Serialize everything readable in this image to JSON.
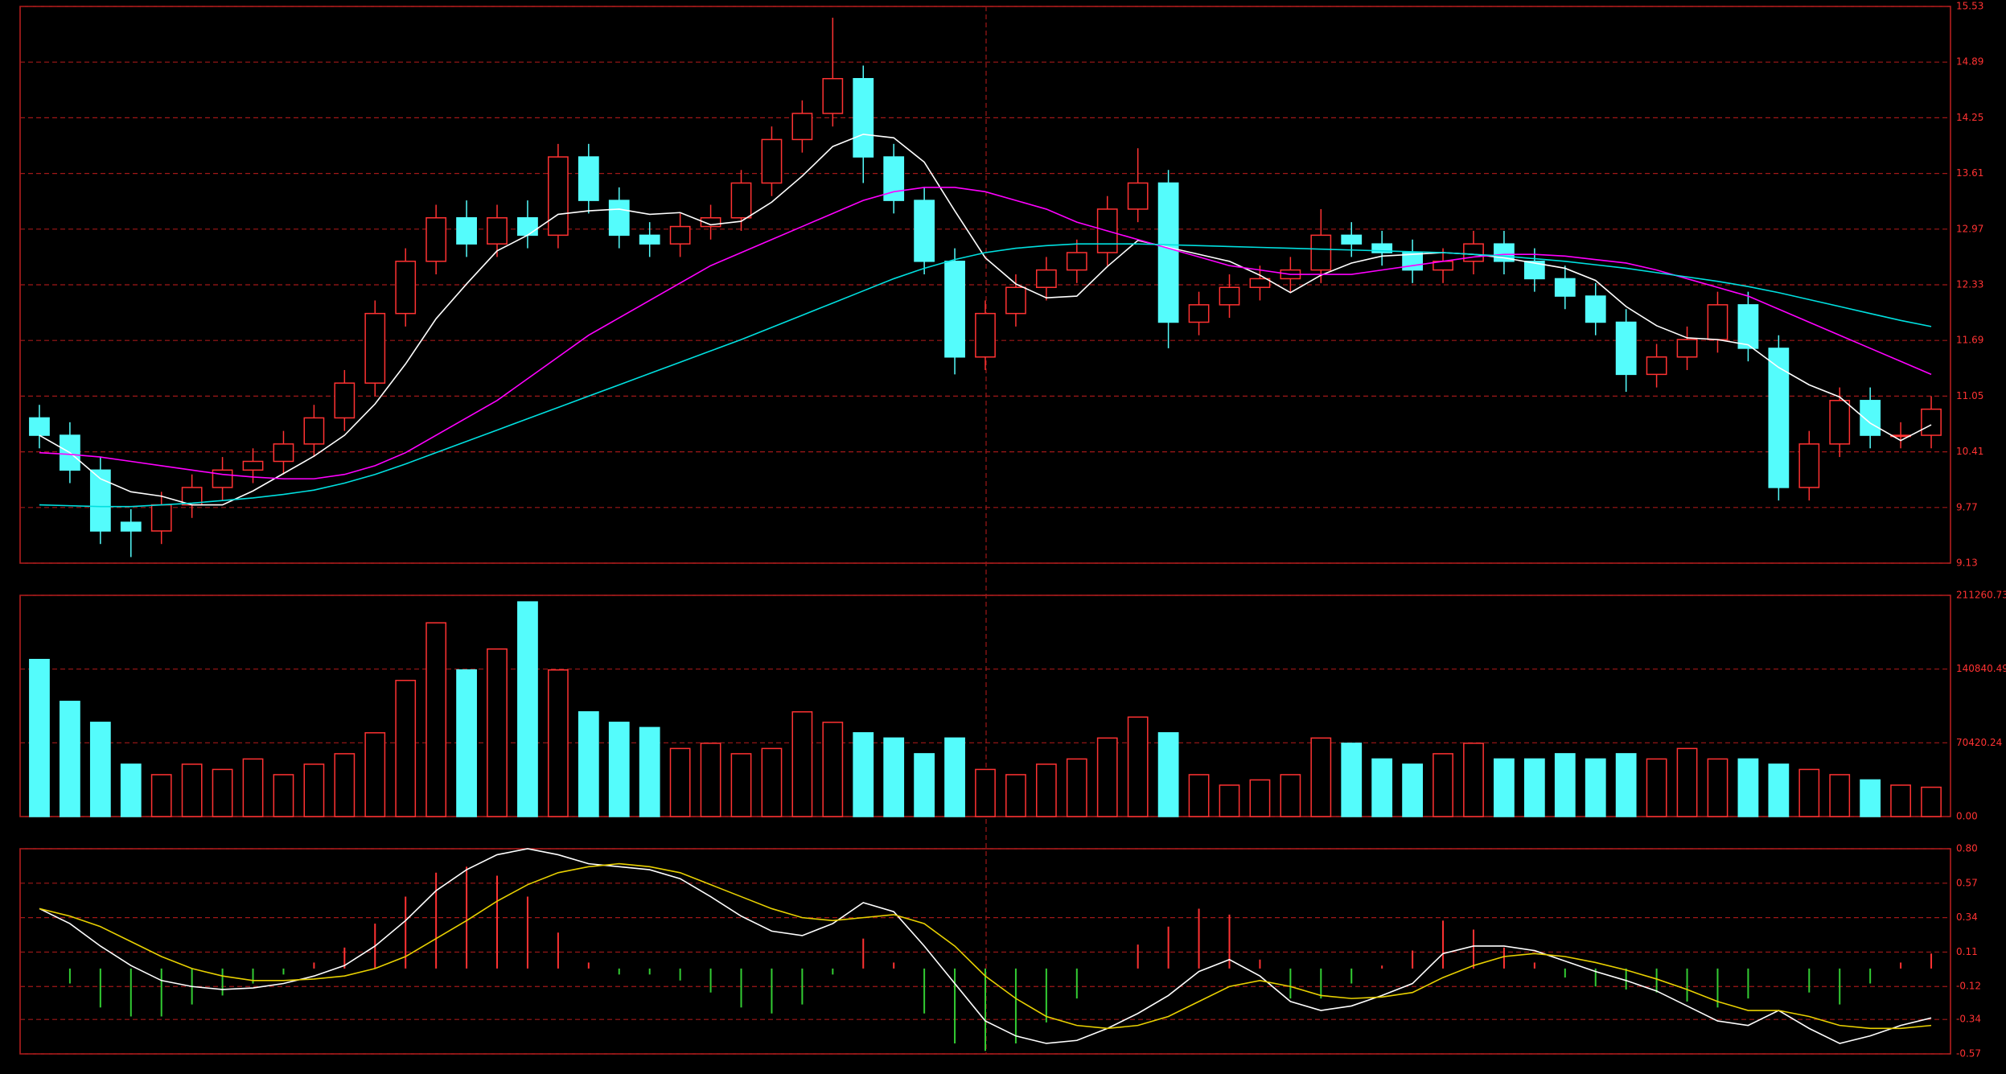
{
  "chart_data": [
    {
      "type": "candlestick",
      "up_color": "#ff3232",
      "down_color": "#54fcfc",
      "open": [
        10.8,
        10.6,
        10.2,
        9.6,
        9.5,
        9.8,
        10.0,
        10.2,
        10.3,
        10.5,
        10.8,
        11.2,
        12.0,
        12.6,
        13.1,
        12.8,
        13.1,
        12.9,
        13.8,
        13.3,
        12.9,
        12.8,
        13.0,
        13.1,
        13.5,
        14.0,
        14.3,
        14.7,
        13.8,
        13.3,
        12.6,
        11.5,
        12.0,
        12.3,
        12.5,
        12.7,
        13.2,
        13.5,
        11.9,
        12.1,
        12.3,
        12.4,
        12.5,
        12.9,
        12.8,
        12.7,
        12.5,
        12.6,
        12.8,
        12.6,
        12.4,
        12.2,
        11.9,
        11.3,
        11.5,
        11.7,
        12.1,
        11.6,
        10.0,
        10.5,
        11.0,
        10.6,
        10.6
      ],
      "high": [
        10.95,
        10.75,
        10.35,
        9.75,
        9.95,
        10.15,
        10.35,
        10.45,
        10.65,
        10.95,
        11.35,
        12.15,
        12.75,
        13.25,
        13.3,
        13.25,
        13.3,
        13.95,
        13.95,
        13.45,
        13.05,
        13.15,
        13.25,
        13.65,
        14.15,
        14.45,
        15.4,
        14.85,
        13.95,
        13.45,
        12.75,
        12.15,
        12.45,
        12.65,
        12.85,
        13.35,
        13.9,
        13.65,
        12.25,
        12.45,
        12.55,
        12.65,
        13.2,
        13.05,
        12.95,
        12.85,
        12.75,
        12.95,
        12.95,
        12.75,
        12.55,
        12.35,
        12.05,
        11.65,
        11.85,
        12.25,
        12.25,
        11.75,
        10.65,
        11.15,
        11.15,
        10.75,
        11.05
      ],
      "low": [
        10.45,
        10.05,
        9.35,
        9.2,
        9.35,
        9.65,
        9.85,
        10.05,
        10.15,
        10.35,
        10.65,
        11.05,
        11.85,
        12.45,
        12.65,
        12.65,
        12.75,
        12.75,
        13.15,
        12.75,
        12.65,
        12.65,
        12.85,
        12.95,
        13.35,
        13.85,
        14.15,
        13.5,
        13.15,
        12.45,
        11.3,
        11.35,
        11.85,
        12.15,
        12.35,
        12.55,
        13.05,
        11.6,
        11.75,
        11.95,
        12.15,
        12.25,
        12.35,
        12.65,
        12.55,
        12.35,
        12.35,
        12.45,
        12.45,
        12.25,
        12.05,
        11.75,
        11.1,
        11.15,
        11.35,
        11.55,
        11.45,
        9.85,
        9.85,
        10.35,
        10.45,
        10.45,
        10.45
      ],
      "close": [
        10.6,
        10.2,
        9.5,
        9.5,
        9.8,
        10.0,
        10.2,
        10.3,
        10.5,
        10.8,
        11.2,
        12.0,
        12.6,
        13.1,
        12.8,
        13.1,
        12.9,
        13.8,
        13.3,
        12.9,
        12.8,
        13.0,
        13.1,
        13.5,
        14.0,
        14.3,
        14.7,
        13.8,
        13.3,
        12.6,
        11.5,
        12.0,
        12.3,
        12.5,
        12.7,
        13.2,
        13.5,
        11.9,
        12.1,
        12.3,
        12.4,
        12.5,
        12.9,
        12.8,
        12.7,
        12.5,
        12.6,
        12.8,
        12.6,
        12.4,
        12.2,
        11.9,
        11.3,
        11.5,
        11.7,
        12.1,
        11.6,
        10.0,
        10.5,
        11.0,
        10.6,
        10.6,
        10.9
      ],
      "lines": [
        {
          "color": "#ffffff",
          "values": [
            10.6,
            10.4,
            10.1,
            9.95,
            9.9,
            9.8,
            9.8,
            9.96,
            10.16,
            10.36,
            10.6,
            10.96,
            11.42,
            11.94,
            12.34,
            12.72,
            12.9,
            13.14,
            13.18,
            13.2,
            13.14,
            13.16,
            13.02,
            13.06,
            13.28,
            13.58,
            13.92,
            14.06,
            14.02,
            13.74,
            13.18,
            12.64,
            12.34,
            12.18,
            12.2,
            12.54,
            12.84,
            12.76,
            12.68,
            12.6,
            12.44,
            12.24,
            12.44,
            12.58,
            12.66,
            12.68,
            12.7,
            12.68,
            12.64,
            12.58,
            12.52,
            12.38,
            12.08,
            11.86,
            11.72,
            11.7,
            11.64,
            11.38,
            11.18,
            11.04,
            10.74,
            10.54,
            10.72
          ]
        },
        {
          "color": "#ff00ff",
          "values": [
            10.4,
            10.38,
            10.35,
            10.3,
            10.25,
            10.2,
            10.15,
            10.12,
            10.1,
            10.1,
            10.15,
            10.25,
            10.4,
            10.6,
            10.8,
            11.0,
            11.25,
            11.5,
            11.75,
            11.95,
            12.15,
            12.35,
            12.55,
            12.7,
            12.85,
            13.0,
            13.15,
            13.3,
            13.4,
            13.45,
            13.45,
            13.4,
            13.3,
            13.2,
            13.05,
            12.95,
            12.85,
            12.75,
            12.65,
            12.55,
            12.5,
            12.45,
            12.45,
            12.45,
            12.5,
            12.55,
            12.6,
            12.65,
            12.68,
            12.68,
            12.66,
            12.62,
            12.58,
            12.5,
            12.4,
            12.3,
            12.2,
            12.05,
            11.9,
            11.75,
            11.6,
            11.45,
            11.3
          ]
        },
        {
          "color": "#00e0e0",
          "values": [
            9.8,
            9.79,
            9.78,
            9.78,
            9.8,
            9.82,
            9.85,
            9.88,
            9.92,
            9.97,
            10.05,
            10.15,
            10.27,
            10.4,
            10.53,
            10.66,
            10.79,
            10.92,
            11.05,
            11.18,
            11.31,
            11.44,
            11.57,
            11.7,
            11.84,
            11.98,
            12.12,
            12.26,
            12.4,
            12.52,
            12.62,
            12.7,
            12.75,
            12.78,
            12.8,
            12.8,
            12.8,
            12.79,
            12.78,
            12.77,
            12.76,
            12.75,
            12.74,
            12.73,
            12.72,
            12.71,
            12.7,
            12.68,
            12.66,
            12.63,
            12.6,
            12.56,
            12.52,
            12.47,
            12.42,
            12.37,
            12.31,
            12.24,
            12.16,
            12.08,
            12.0,
            11.92,
            11.85
          ]
        }
      ],
      "ylim": [
        9.13,
        15.53
      ],
      "yticks": [
        9.13,
        9.77,
        10.41,
        11.05,
        11.69,
        12.33,
        12.97,
        13.61,
        14.25,
        14.89,
        15.53
      ],
      "grid": true
    },
    {
      "type": "volume",
      "values": [
        150000,
        110000,
        90000,
        50000,
        40000,
        50000,
        45000,
        55000,
        40000,
        50000,
        60000,
        80000,
        130000,
        185000,
        140000,
        160000,
        205000,
        140000,
        100000,
        90000,
        85000,
        65000,
        70000,
        60000,
        65000,
        100000,
        90000,
        80000,
        75000,
        60000,
        75000,
        45000,
        40000,
        50000,
        55000,
        75000,
        95000,
        80000,
        40000,
        30000,
        35000,
        40000,
        75000,
        70000,
        55000,
        50000,
        60000,
        70000,
        55000,
        55000,
        60000,
        55000,
        60000,
        55000,
        65000,
        55000,
        55000,
        50000,
        45000,
        40000,
        35000,
        30000,
        28000
      ],
      "ylim": [
        0,
        211260.73
      ],
      "yticks": [
        {
          "value": 0,
          "label": "0.00"
        },
        70420.24,
        140840.49,
        211260.73
      ],
      "grid": true
    },
    {
      "type": "macd",
      "histogram": [
        0,
        -0.1,
        -0.26,
        -0.32,
        -0.32,
        -0.24,
        -0.18,
        -0.1,
        -0.04,
        0.04,
        0.14,
        0.3,
        0.48,
        0.64,
        0.68,
        0.62,
        0.48,
        0.24,
        0.04,
        -0.04,
        -0.04,
        -0.08,
        -0.16,
        -0.26,
        -0.3,
        -0.24,
        -0.04,
        0.2,
        0.04,
        -0.3,
        -0.5,
        -0.55,
        -0.5,
        -0.36,
        -0.2,
        0,
        0.16,
        0.28,
        0.4,
        0.36,
        0.06,
        -0.2,
        -0.2,
        -0.1,
        0.02,
        0.12,
        0.32,
        0.26,
        0.14,
        0.04,
        -0.06,
        -0.12,
        -0.14,
        -0.16,
        -0.22,
        -0.26,
        -0.2,
        0,
        -0.16,
        -0.24,
        -0.1,
        0.04,
        0.1
      ],
      "pos_color": "#ff3232",
      "neg_color": "#33cc33",
      "series": [
        {
          "color": "#ffffff",
          "values": [
            0.4,
            0.3,
            0.15,
            0.02,
            -0.08,
            -0.12,
            -0.14,
            -0.13,
            -0.1,
            -0.05,
            0.02,
            0.15,
            0.32,
            0.52,
            0.66,
            0.76,
            0.8,
            0.76,
            0.7,
            0.68,
            0.66,
            0.6,
            0.48,
            0.35,
            0.25,
            0.22,
            0.3,
            0.44,
            0.38,
            0.15,
            -0.1,
            -0.35,
            -0.45,
            -0.5,
            -0.48,
            -0.4,
            -0.3,
            -0.18,
            -0.02,
            0.06,
            -0.05,
            -0.22,
            -0.28,
            -0.25,
            -0.18,
            -0.1,
            0.1,
            0.15,
            0.15,
            0.12,
            0.05,
            -0.02,
            -0.08,
            -0.15,
            -0.25,
            -0.35,
            -0.38,
            -0.28,
            -0.4,
            -0.5,
            -0.45,
            -0.38,
            -0.33
          ]
        },
        {
          "color": "#e8d000",
          "values": [
            0.4,
            0.35,
            0.28,
            0.18,
            0.08,
            0,
            -0.05,
            -0.08,
            -0.08,
            -0.07,
            -0.05,
            0,
            0.08,
            0.2,
            0.32,
            0.45,
            0.56,
            0.64,
            0.68,
            0.7,
            0.68,
            0.64,
            0.56,
            0.48,
            0.4,
            0.34,
            0.32,
            0.34,
            0.36,
            0.3,
            0.15,
            -0.05,
            -0.2,
            -0.32,
            -0.38,
            -0.4,
            -0.38,
            -0.32,
            -0.22,
            -0.12,
            -0.08,
            -0.12,
            -0.18,
            -0.2,
            -0.19,
            -0.16,
            -0.06,
            0.02,
            0.08,
            0.1,
            0.08,
            0.04,
            -0.01,
            -0.07,
            -0.14,
            -0.22,
            -0.28,
            -0.28,
            -0.32,
            -0.38,
            -0.4,
            -0.4,
            -0.38
          ]
        }
      ],
      "ylim": [
        -0.57,
        0.8
      ],
      "yticks": [
        -0.57,
        -0.34,
        -0.12,
        0.11,
        0.34,
        0.57,
        {
          "value": 0.8,
          "label": "0.80"
        }
      ],
      "grid": true
    }
  ]
}
